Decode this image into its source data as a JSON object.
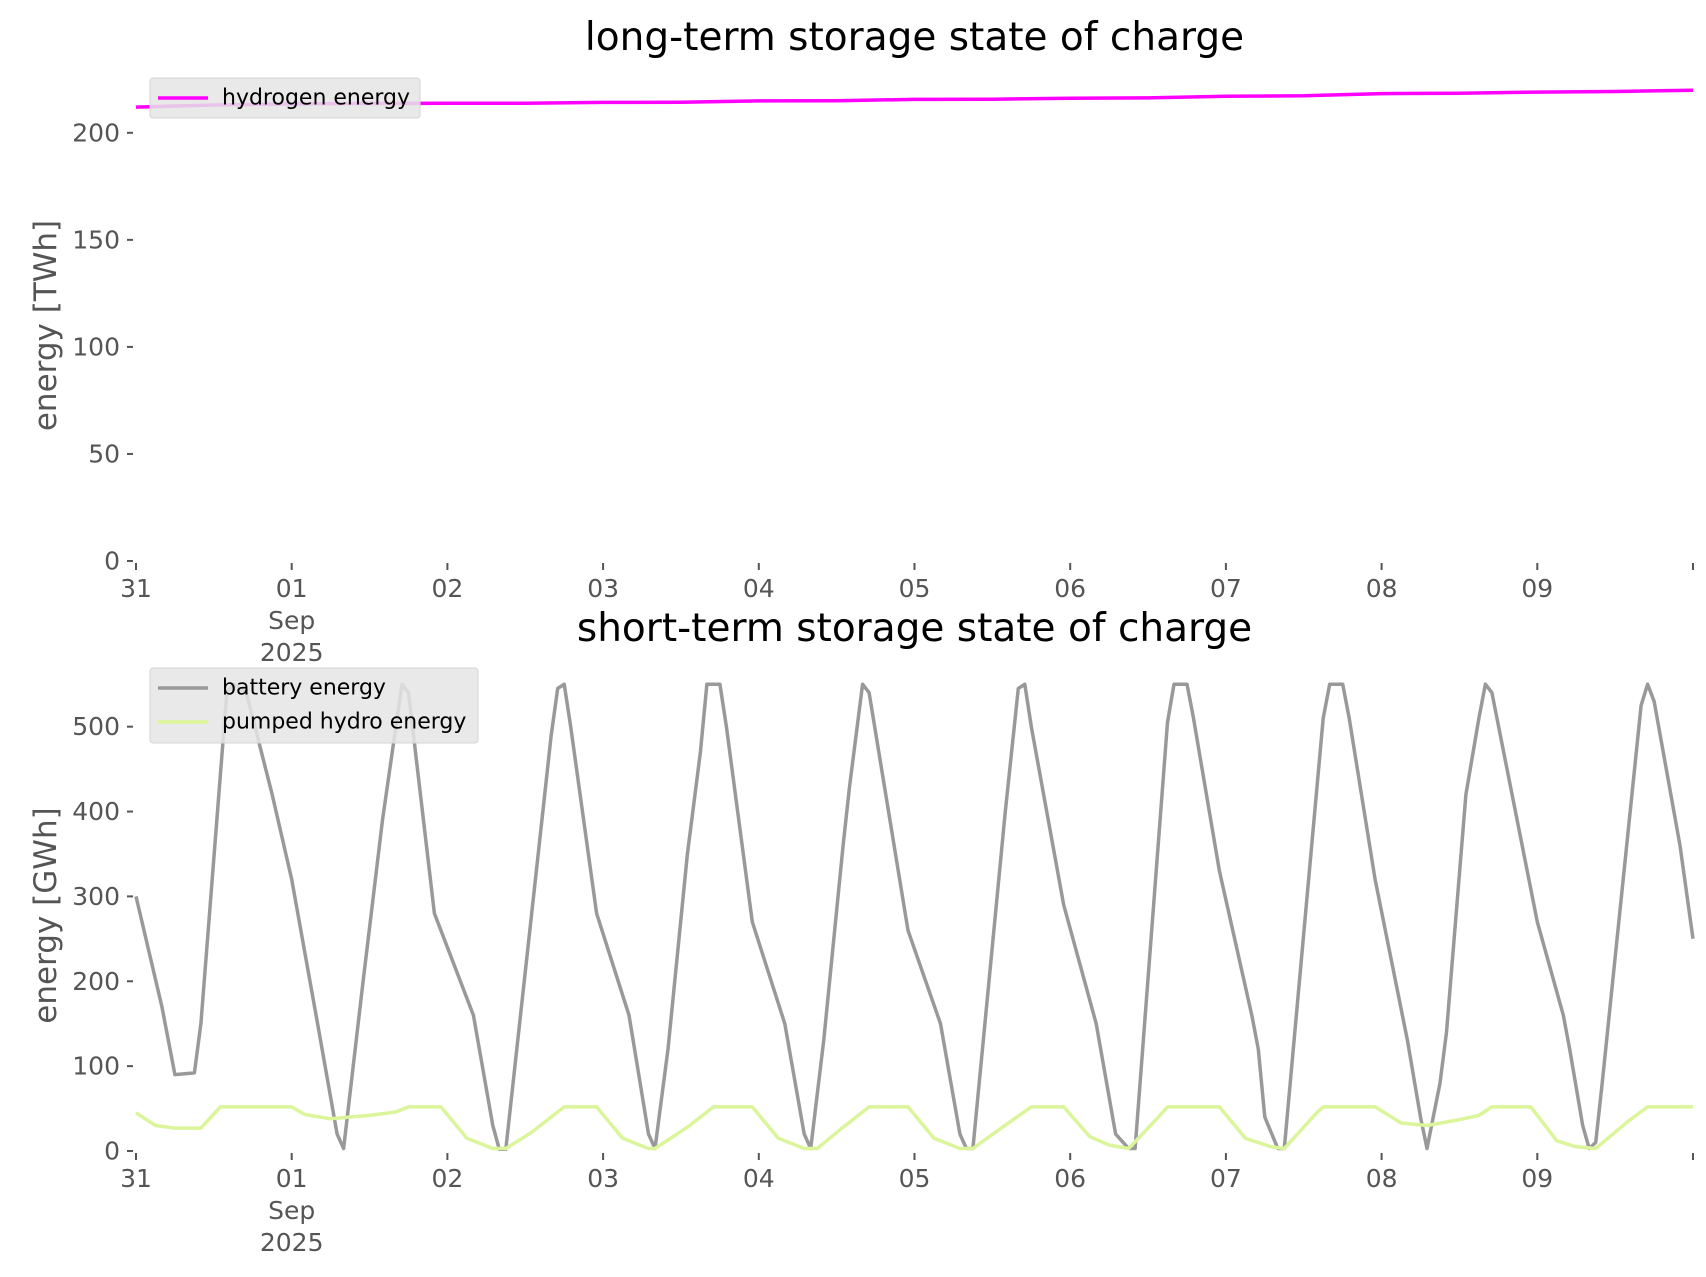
{
  "chart_data": [
    {
      "type": "line",
      "title": "long-term storage state of charge",
      "ylabel": "energy [TWh]",
      "xlabel": "",
      "ylim": [
        0,
        220
      ],
      "yticks": [
        0,
        50,
        100,
        150,
        200
      ],
      "xlim": [
        "2025-08-31",
        "2025-09-10"
      ],
      "xticks": [
        {
          "date": "2025-08-31",
          "label": "31",
          "sub": []
        },
        {
          "date": "2025-09-01",
          "label": "01",
          "sub": [
            "Sep",
            "2025"
          ]
        },
        {
          "date": "2025-09-02",
          "label": "02",
          "sub": []
        },
        {
          "date": "2025-09-03",
          "label": "03",
          "sub": []
        },
        {
          "date": "2025-09-04",
          "label": "04",
          "sub": []
        },
        {
          "date": "2025-09-05",
          "label": "05",
          "sub": []
        },
        {
          "date": "2025-09-06",
          "label": "06",
          "sub": []
        },
        {
          "date": "2025-09-07",
          "label": "07",
          "sub": []
        },
        {
          "date": "2025-09-08",
          "label": "08",
          "sub": []
        },
        {
          "date": "2025-09-09",
          "label": "09",
          "sub": []
        }
      ],
      "legend_position": "upper-left",
      "grid": false,
      "series": [
        {
          "name": "hydrogen energy",
          "color": "#ff00ff",
          "points": [
            [
              "2025-08-31 00:00",
              212.0
            ],
            [
              "2025-08-31 12:00",
              213.0
            ],
            [
              "2025-09-01 00:00",
              213.5
            ],
            [
              "2025-09-01 12:00",
              213.7
            ],
            [
              "2025-09-02 00:00",
              213.8
            ],
            [
              "2025-09-02 12:00",
              213.8
            ],
            [
              "2025-09-03 00:00",
              214.2
            ],
            [
              "2025-09-03 12:00",
              214.3
            ],
            [
              "2025-09-04 00:00",
              214.9
            ],
            [
              "2025-09-04 12:00",
              215.0
            ],
            [
              "2025-09-05 00:00",
              215.6
            ],
            [
              "2025-09-05 12:00",
              215.7
            ],
            [
              "2025-09-06 00:00",
              216.1
            ],
            [
              "2025-09-06 12:00",
              216.3
            ],
            [
              "2025-09-07 00:00",
              217.1
            ],
            [
              "2025-09-07 12:00",
              217.3
            ],
            [
              "2025-09-08 00:00",
              218.3
            ],
            [
              "2025-09-08 12:00",
              218.5
            ],
            [
              "2025-09-09 00:00",
              219.0
            ],
            [
              "2025-09-09 12:00",
              219.3
            ],
            [
              "2025-09-10 00:00",
              219.9
            ]
          ]
        }
      ]
    },
    {
      "type": "line",
      "title": "short-term storage state of charge",
      "ylabel": "energy [GWh]",
      "xlabel": "",
      "ylim": [
        0,
        555
      ],
      "yticks": [
        0,
        100,
        200,
        300,
        400,
        500
      ],
      "xlim": [
        "2025-08-31",
        "2025-09-10"
      ],
      "xticks": [
        {
          "date": "2025-08-31",
          "label": "31",
          "sub": []
        },
        {
          "date": "2025-09-01",
          "label": "01",
          "sub": [
            "Sep",
            "2025"
          ]
        },
        {
          "date": "2025-09-02",
          "label": "02",
          "sub": []
        },
        {
          "date": "2025-09-03",
          "label": "03",
          "sub": []
        },
        {
          "date": "2025-09-04",
          "label": "04",
          "sub": []
        },
        {
          "date": "2025-09-05",
          "label": "05",
          "sub": []
        },
        {
          "date": "2025-09-06",
          "label": "06",
          "sub": []
        },
        {
          "date": "2025-09-07",
          "label": "07",
          "sub": []
        },
        {
          "date": "2025-09-08",
          "label": "08",
          "sub": []
        },
        {
          "date": "2025-09-09",
          "label": "09",
          "sub": []
        }
      ],
      "legend_position": "upper-left",
      "grid": false,
      "series": [
        {
          "name": "battery energy",
          "color": "#999999",
          "points": [
            [
              "2025-08-31 00:00",
              300
            ],
            [
              "2025-08-31 04:00",
              170
            ],
            [
              "2025-08-31 06:00",
              90
            ],
            [
              "2025-08-31 09:00",
              92
            ],
            [
              "2025-08-31 10:00",
              150
            ],
            [
              "2025-08-31 14:00",
              540
            ],
            [
              "2025-08-31 15:00",
              550
            ],
            [
              "2025-08-31 17:00",
              540
            ],
            [
              "2025-08-31 21:00",
              420
            ],
            [
              "2025-09-01 00:00",
              320
            ],
            [
              "2025-09-01 04:00",
              150
            ],
            [
              "2025-09-01 07:00",
              20
            ],
            [
              "2025-09-01 08:00",
              3
            ],
            [
              "2025-09-01 11:00",
              200
            ],
            [
              "2025-09-01 14:00",
              390
            ],
            [
              "2025-09-01 17:00",
              550
            ],
            [
              "2025-09-01 18:00",
              540
            ],
            [
              "2025-09-01 22:00",
              280
            ],
            [
              "2025-09-02 04:00",
              160
            ],
            [
              "2025-09-02 07:00",
              30
            ],
            [
              "2025-09-02 08:00",
              2
            ],
            [
              "2025-09-02 09:00",
              2
            ],
            [
              "2025-09-02 14:00",
              350
            ],
            [
              "2025-09-02 16:00",
              490
            ],
            [
              "2025-09-02 17:00",
              545
            ],
            [
              "2025-09-02 18:00",
              550
            ],
            [
              "2025-09-02 19:00",
              500
            ],
            [
              "2025-09-02 23:00",
              280
            ],
            [
              "2025-09-03 04:00",
              160
            ],
            [
              "2025-09-03 07:00",
              20
            ],
            [
              "2025-09-03 08:00",
              3
            ],
            [
              "2025-09-03 10:00",
              120
            ],
            [
              "2025-09-03 13:00",
              350
            ],
            [
              "2025-09-03 15:00",
              470
            ],
            [
              "2025-09-03 16:00",
              550
            ],
            [
              "2025-09-03 18:00",
              550
            ],
            [
              "2025-09-03 19:00",
              500
            ],
            [
              "2025-09-03 23:00",
              270
            ],
            [
              "2025-09-04 04:00",
              150
            ],
            [
              "2025-09-04 07:00",
              20
            ],
            [
              "2025-09-04 08:00",
              3
            ],
            [
              "2025-09-04 10:00",
              130
            ],
            [
              "2025-09-04 13:00",
              360
            ],
            [
              "2025-09-04 14:00",
              430
            ],
            [
              "2025-09-04 16:00",
              550
            ],
            [
              "2025-09-04 17:00",
              540
            ],
            [
              "2025-09-04 23:00",
              260
            ],
            [
              "2025-09-05 04:00",
              150
            ],
            [
              "2025-09-05 07:00",
              20
            ],
            [
              "2025-09-05 08:00",
              3
            ],
            [
              "2025-09-05 09:00",
              3
            ],
            [
              "2025-09-05 14:00",
              400
            ],
            [
              "2025-09-05 16:00",
              545
            ],
            [
              "2025-09-05 17:00",
              550
            ],
            [
              "2025-09-05 18:00",
              500
            ],
            [
              "2025-09-05 23:00",
              290
            ],
            [
              "2025-09-06 04:00",
              150
            ],
            [
              "2025-09-06 07:00",
              20
            ],
            [
              "2025-09-06 09:00",
              3
            ],
            [
              "2025-09-06 10:00",
              3
            ],
            [
              "2025-09-06 15:00",
              505
            ],
            [
              "2025-09-06 16:00",
              550
            ],
            [
              "2025-09-06 18:00",
              550
            ],
            [
              "2025-09-06 19:00",
              510
            ],
            [
              "2025-09-06 23:00",
              330
            ],
            [
              "2025-09-07 04:00",
              160
            ],
            [
              "2025-09-07 05:00",
              120
            ],
            [
              "2025-09-07 06:00",
              40
            ],
            [
              "2025-09-07 08:00",
              3
            ],
            [
              "2025-09-07 09:00",
              3
            ],
            [
              "2025-09-07 15:00",
              510
            ],
            [
              "2025-09-07 16:00",
              550
            ],
            [
              "2025-09-07 18:00",
              550
            ],
            [
              "2025-09-07 19:00",
              510
            ],
            [
              "2025-09-07 23:00",
              320
            ],
            [
              "2025-09-08 04:00",
              130
            ],
            [
              "2025-09-08 06:00",
              40
            ],
            [
              "2025-09-08 07:00",
              3
            ],
            [
              "2025-09-08 09:00",
              80
            ],
            [
              "2025-09-08 10:00",
              140
            ],
            [
              "2025-09-08 13:00",
              420
            ],
            [
              "2025-09-08 15:00",
              510
            ],
            [
              "2025-09-08 16:00",
              550
            ],
            [
              "2025-09-08 17:00",
              540
            ],
            [
              "2025-09-09 00:00",
              270
            ],
            [
              "2025-09-09 04:00",
              160
            ],
            [
              "2025-09-09 05:00",
              120
            ],
            [
              "2025-09-09 07:00",
              30
            ],
            [
              "2025-09-09 08:00",
              3
            ],
            [
              "2025-09-09 09:00",
              10
            ],
            [
              "2025-09-09 10:00",
              80
            ],
            [
              "2025-09-09 16:00",
              525
            ],
            [
              "2025-09-09 17:00",
              550
            ],
            [
              "2025-09-09 18:00",
              530
            ],
            [
              "2025-09-09 22:00",
              360
            ],
            [
              "2025-09-10 00:00",
              250
            ]
          ]
        },
        {
          "name": "pumped hydro energy",
          "color": "#dbf59a",
          "points": [
            [
              "2025-08-31 00:00",
              45
            ],
            [
              "2025-08-31 03:00",
              30
            ],
            [
              "2025-08-31 06:00",
              27
            ],
            [
              "2025-08-31 10:00",
              27
            ],
            [
              "2025-08-31 13:00",
              52
            ],
            [
              "2025-09-01 00:00",
              52
            ],
            [
              "2025-09-01 02:00",
              43
            ],
            [
              "2025-09-01 06:00",
              38
            ],
            [
              "2025-09-01 12:00",
              42
            ],
            [
              "2025-09-01 16:00",
              46
            ],
            [
              "2025-09-01 18:00",
              52
            ],
            [
              "2025-09-01 23:00",
              52
            ],
            [
              "2025-09-02 03:00",
              15
            ],
            [
              "2025-09-02 07:00",
              3
            ],
            [
              "2025-09-02 09:00",
              3
            ],
            [
              "2025-09-02 13:00",
              22
            ],
            [
              "2025-09-02 18:00",
              52
            ],
            [
              "2025-09-02 23:00",
              52
            ],
            [
              "2025-09-03 03:00",
              15
            ],
            [
              "2025-09-03 07:00",
              3
            ],
            [
              "2025-09-03 08:00",
              3
            ],
            [
              "2025-09-03 13:00",
              28
            ],
            [
              "2025-09-03 17:00",
              52
            ],
            [
              "2025-09-03 23:00",
              52
            ],
            [
              "2025-09-04 03:00",
              15
            ],
            [
              "2025-09-04 07:00",
              3
            ],
            [
              "2025-09-04 09:00",
              3
            ],
            [
              "2025-09-04 13:00",
              28
            ],
            [
              "2025-09-04 17:00",
              52
            ],
            [
              "2025-09-04 23:00",
              52
            ],
            [
              "2025-09-05 03:00",
              15
            ],
            [
              "2025-09-05 07:00",
              3
            ],
            [
              "2025-09-05 09:00",
              3
            ],
            [
              "2025-09-05 13:00",
              25
            ],
            [
              "2025-09-05 18:00",
              52
            ],
            [
              "2025-09-05 23:00",
              52
            ],
            [
              "2025-09-06 03:00",
              17
            ],
            [
              "2025-09-06 06:00",
              7
            ],
            [
              "2025-09-06 09:00",
              3
            ],
            [
              "2025-09-06 13:00",
              35
            ],
            [
              "2025-09-06 15:00",
              52
            ],
            [
              "2025-09-06 23:00",
              52
            ],
            [
              "2025-09-07 03:00",
              15
            ],
            [
              "2025-09-07 07:00",
              5
            ],
            [
              "2025-09-07 09:00",
              3
            ],
            [
              "2025-09-07 14:00",
              45
            ],
            [
              "2025-09-07 15:00",
              52
            ],
            [
              "2025-09-07 23:00",
              52
            ],
            [
              "2025-09-08 03:00",
              33
            ],
            [
              "2025-09-08 07:00",
              30
            ],
            [
              "2025-09-08 12:00",
              37
            ],
            [
              "2025-09-08 15:00",
              42
            ],
            [
              "2025-09-08 17:00",
              52
            ],
            [
              "2025-09-08 23:00",
              52
            ],
            [
              "2025-09-09 03:00",
              12
            ],
            [
              "2025-09-09 06:00",
              5
            ],
            [
              "2025-09-09 09:00",
              3
            ],
            [
              "2025-09-09 14:00",
              35
            ],
            [
              "2025-09-09 17:00",
              52
            ],
            [
              "2025-09-10 00:00",
              52
            ]
          ]
        }
      ]
    }
  ]
}
